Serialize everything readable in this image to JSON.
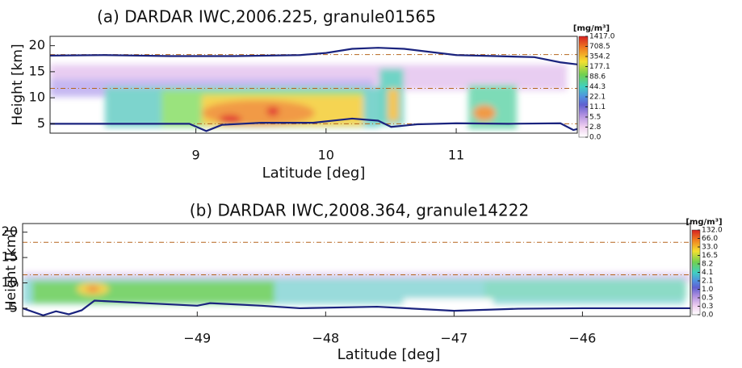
{
  "chart_data": [
    {
      "type": "curtain",
      "title": "(a) DARDAR IWC,2006.225, granule01565",
      "xlabel": "Latitude [deg]",
      "ylabel": "Height [km]",
      "xlim": [
        7.88,
        11.93
      ],
      "xticks": [
        9,
        10,
        11
      ],
      "ylim": [
        3.2,
        21.8
      ],
      "yticks": [
        5,
        10,
        15,
        20
      ],
      "hlines": [
        18.3,
        11.8,
        5.0
      ],
      "hline_color": "#b5651d",
      "series": [
        {
          "color": "#1a237e",
          "x": [
            7.88,
            8.3,
            8.8,
            9.3,
            9.8,
            10.0,
            10.2,
            10.4,
            10.6,
            10.8,
            11.0,
            11.3,
            11.6,
            11.8,
            11.93
          ],
          "values": [
            18.1,
            18.2,
            18.0,
            18.0,
            18.2,
            18.6,
            19.4,
            19.6,
            19.4,
            18.8,
            18.2,
            18.0,
            17.8,
            16.8,
            16.4
          ]
        },
        {
          "color": "#1a237e",
          "x": [
            7.88,
            8.4,
            8.95,
            9.08,
            9.2,
            9.5,
            9.9,
            10.2,
            10.4,
            10.5,
            10.7,
            11.0,
            11.4,
            11.8,
            11.9,
            11.93
          ],
          "values": [
            5.0,
            5.0,
            5.0,
            3.6,
            4.8,
            5.2,
            5.2,
            6.0,
            5.6,
            4.4,
            4.9,
            5.1,
            5.0,
            5.1,
            3.8,
            4.0
          ]
        }
      ],
      "colorbar": {
        "title": "[mg/m³]",
        "ticks": [
          {
            "value": 1417,
            "label": "1417.0"
          },
          708.5,
          354.2,
          177.1,
          88.6,
          44.3,
          22.1,
          11.1,
          5.5,
          2.8,
          {
            "value": 0,
            "label": "0.0"
          }
        ]
      }
    },
    {
      "type": "curtain",
      "title": "(b) DARDAR IWC,2008.364, granule14222",
      "xlabel": "Latitude [deg]",
      "ylabel": "Height [km]",
      "xlim": [
        -50.36,
        -45.16
      ],
      "xticks": [
        {
          "value": -49,
          "label": "−49"
        },
        {
          "value": -48,
          "label": "−48"
        },
        {
          "value": -47,
          "label": "−47"
        },
        {
          "value": -46,
          "label": "−46"
        }
      ],
      "ylim": [
        3.4,
        21.7
      ],
      "yticks": [
        5,
        10,
        15,
        20
      ],
      "hlines": [
        18.0,
        11.6
      ],
      "hline_color": "#b5651d",
      "series": [
        {
          "color": "#1a237e",
          "x": [
            -50.36,
            -50.2,
            -50.1,
            -50.0,
            -49.9,
            -49.8,
            -49.4,
            -49.0,
            -48.9,
            -48.5,
            -48.2,
            -47.6,
            -47.0,
            -46.5,
            -46.0,
            -45.16
          ],
          "values": [
            5.0,
            3.6,
            4.4,
            3.8,
            4.6,
            6.5,
            6.0,
            5.5,
            6.0,
            5.5,
            5.0,
            5.3,
            4.5,
            4.9,
            5.0,
            5.0
          ]
        }
      ],
      "colorbar": {
        "title": "[mg/m³]",
        "ticks": [
          {
            "value": 132,
            "label": "132.0"
          },
          {
            "value": 66,
            "label": "66.0"
          },
          {
            "value": 33,
            "label": "33.0"
          },
          16.5,
          8.2,
          4.1,
          2.1,
          {
            "value": 1,
            "label": "1.0"
          },
          0.5,
          0.3,
          {
            "value": 0,
            "label": "0.0"
          }
        ]
      }
    }
  ]
}
